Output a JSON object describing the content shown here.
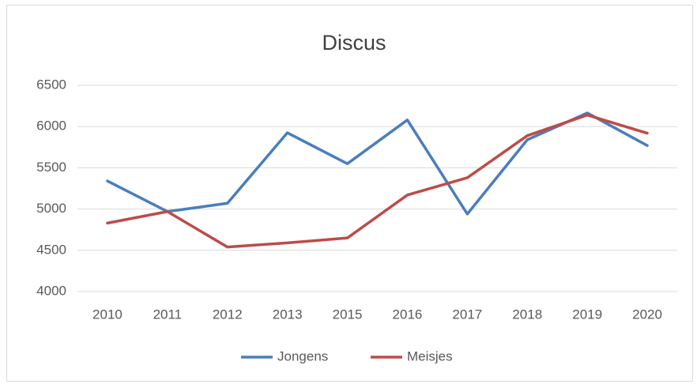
{
  "chart_data": {
    "type": "line",
    "title": "Discus",
    "categories": [
      "2010",
      "2011",
      "2012",
      "2013",
      "2015",
      "2016",
      "2017",
      "2018",
      "2019",
      "2020"
    ],
    "series": [
      {
        "name": "Jongens",
        "color": "#4a7ebb",
        "values": [
          5340,
          4970,
          5070,
          5925,
          5550,
          6080,
          4940,
          5840,
          6165,
          5770
        ]
      },
      {
        "name": "Meisjes",
        "color": "#be4b48",
        "values": [
          4830,
          4970,
          4540,
          4590,
          4650,
          5170,
          5380,
          5890,
          6140,
          5920
        ]
      }
    ],
    "ylim": [
      4000,
      6500
    ],
    "yticks": [
      4000,
      4500,
      5000,
      5500,
      6000,
      6500
    ],
    "grid": true,
    "legend": "bottom"
  }
}
